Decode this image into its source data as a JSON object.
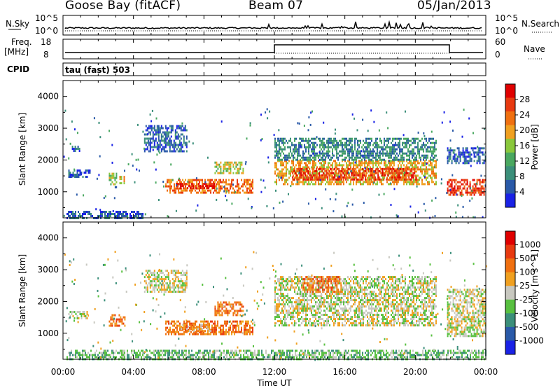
{
  "header": {
    "station": "Goose Bay (fitACF)",
    "beam": "Beam 07",
    "date": "05/Jan/2013"
  },
  "aux_panels": {
    "nsky_label": "N.Sky",
    "nsky_ticks": [
      "10^5",
      "10^0"
    ],
    "nsearch_label": "N.Search",
    "freq_label": "Freq.",
    "freq_unit": "[MHz]",
    "freq_ticks": [
      "18",
      "8"
    ],
    "nave_label": "Nave",
    "nave_ticks": [
      "60",
      "0"
    ],
    "cpid_label": "CPID",
    "cpid_value": "tau (fast) 503"
  },
  "time_axis": {
    "title": "Time UT",
    "ticks": [
      "00:00",
      "04:00",
      "08:00",
      "12:00",
      "16:00",
      "20:00",
      "00:00"
    ]
  },
  "colors": {
    "power": [
      "#1a22e6",
      "#2a5aa8",
      "#3b8f7a",
      "#4aa860",
      "#8ac83c",
      "#f0a020",
      "#f07010",
      "#e83a10",
      "#e00000"
    ],
    "velocity": [
      "#1a22e6",
      "#2a5aa8",
      "#3b8f7a",
      "#58c040",
      "#c8c8c0",
      "#f0a020",
      "#f07010",
      "#e83a10",
      "#e00000"
    ]
  },
  "chart_data": [
    {
      "type": "heatmap",
      "name": "power",
      "ylabel": "Slant Range [km]",
      "xlabel": "Time UT",
      "x_range_hours": [
        0,
        24
      ],
      "ylim": [
        180,
        4500
      ],
      "y_ticks": [
        1000,
        2000,
        3000,
        4000
      ],
      "colorbar_label": "Power [dB]",
      "colorbar_ticks": [
        4,
        8,
        12,
        16,
        20,
        24,
        28
      ],
      "colorbar_range": [
        0,
        32
      ],
      "regions": [
        {
          "t": [
            0.2,
            4.5
          ],
          "r": [
            200,
            400
          ],
          "level": 1
        },
        {
          "t": [
            5.8,
            10.8
          ],
          "r": [
            1000,
            1400
          ],
          "level": 6
        },
        {
          "t": [
            6.4,
            8.6
          ],
          "r": [
            1100,
            1280
          ],
          "level": 8
        },
        {
          "t": [
            4.6,
            7.0
          ],
          "r": [
            2300,
            3100
          ],
          "level": 1
        },
        {
          "t": [
            8.6,
            10.2
          ],
          "r": [
            1600,
            1950
          ],
          "level": 4
        },
        {
          "t": [
            12.0,
            21.2
          ],
          "r": [
            1250,
            2000
          ],
          "level": 5
        },
        {
          "t": [
            13.0,
            20.0
          ],
          "r": [
            1400,
            1750
          ],
          "level": 7
        },
        {
          "t": [
            12.0,
            21.2
          ],
          "r": [
            2000,
            2700
          ],
          "level": 2
        },
        {
          "t": [
            21.8,
            24.0
          ],
          "r": [
            1900,
            2400
          ],
          "level": 1
        },
        {
          "t": [
            21.8,
            24.0
          ],
          "r": [
            900,
            1400
          ],
          "level": 7
        },
        {
          "t": [
            2.6,
            3.0
          ],
          "r": [
            1250,
            1600
          ],
          "level": 4
        },
        {
          "t": [
            3.2,
            3.5
          ],
          "r": [
            1300,
            1500
          ],
          "level": 5
        },
        {
          "t": [
            0.5,
            0.9
          ],
          "r": [
            2300,
            2450
          ],
          "level": 1
        },
        {
          "t": [
            0.3,
            1.5
          ],
          "r": [
            1500,
            1700
          ],
          "level": 1
        }
      ]
    },
    {
      "type": "heatmap",
      "name": "velocity",
      "ylabel": "Slant Range [km]",
      "xlabel": "Time UT",
      "x_range_hours": [
        0,
        24
      ],
      "ylim": [
        180,
        4500
      ],
      "y_ticks": [
        1000,
        2000,
        3000,
        4000
      ],
      "colorbar_label": "Velocity [m s^-1]",
      "colorbar_ticks": [
        "1000",
        "500",
        "100",
        "25",
        "-25",
        "-100",
        "-500",
        "-1000"
      ],
      "regions": [
        {
          "t": [
            0.2,
            24.0
          ],
          "r": [
            200,
            480
          ],
          "level": 3
        },
        {
          "t": [
            5.8,
            10.8
          ],
          "r": [
            1000,
            1400
          ],
          "level": 6
        },
        {
          "t": [
            6.6,
            8.4
          ],
          "r": [
            1100,
            1300
          ],
          "level": 5
        },
        {
          "t": [
            4.6,
            7.0
          ],
          "r": [
            2300,
            3000
          ],
          "level": 4
        },
        {
          "t": [
            8.6,
            10.2
          ],
          "r": [
            1600,
            2000
          ],
          "level": 6
        },
        {
          "t": [
            12.0,
            21.2
          ],
          "r": [
            1250,
            2800
          ],
          "level": 4
        },
        {
          "t": [
            13.6,
            15.8
          ],
          "r": [
            2300,
            2800
          ],
          "level": 6
        },
        {
          "t": [
            21.8,
            24.0
          ],
          "r": [
            900,
            2400
          ],
          "level": 4
        },
        {
          "t": [
            2.6,
            3.5
          ],
          "r": [
            1250,
            1600
          ],
          "level": 6
        },
        {
          "t": [
            0.3,
            1.4
          ],
          "r": [
            1500,
            1700
          ],
          "level": 4
        }
      ]
    }
  ]
}
